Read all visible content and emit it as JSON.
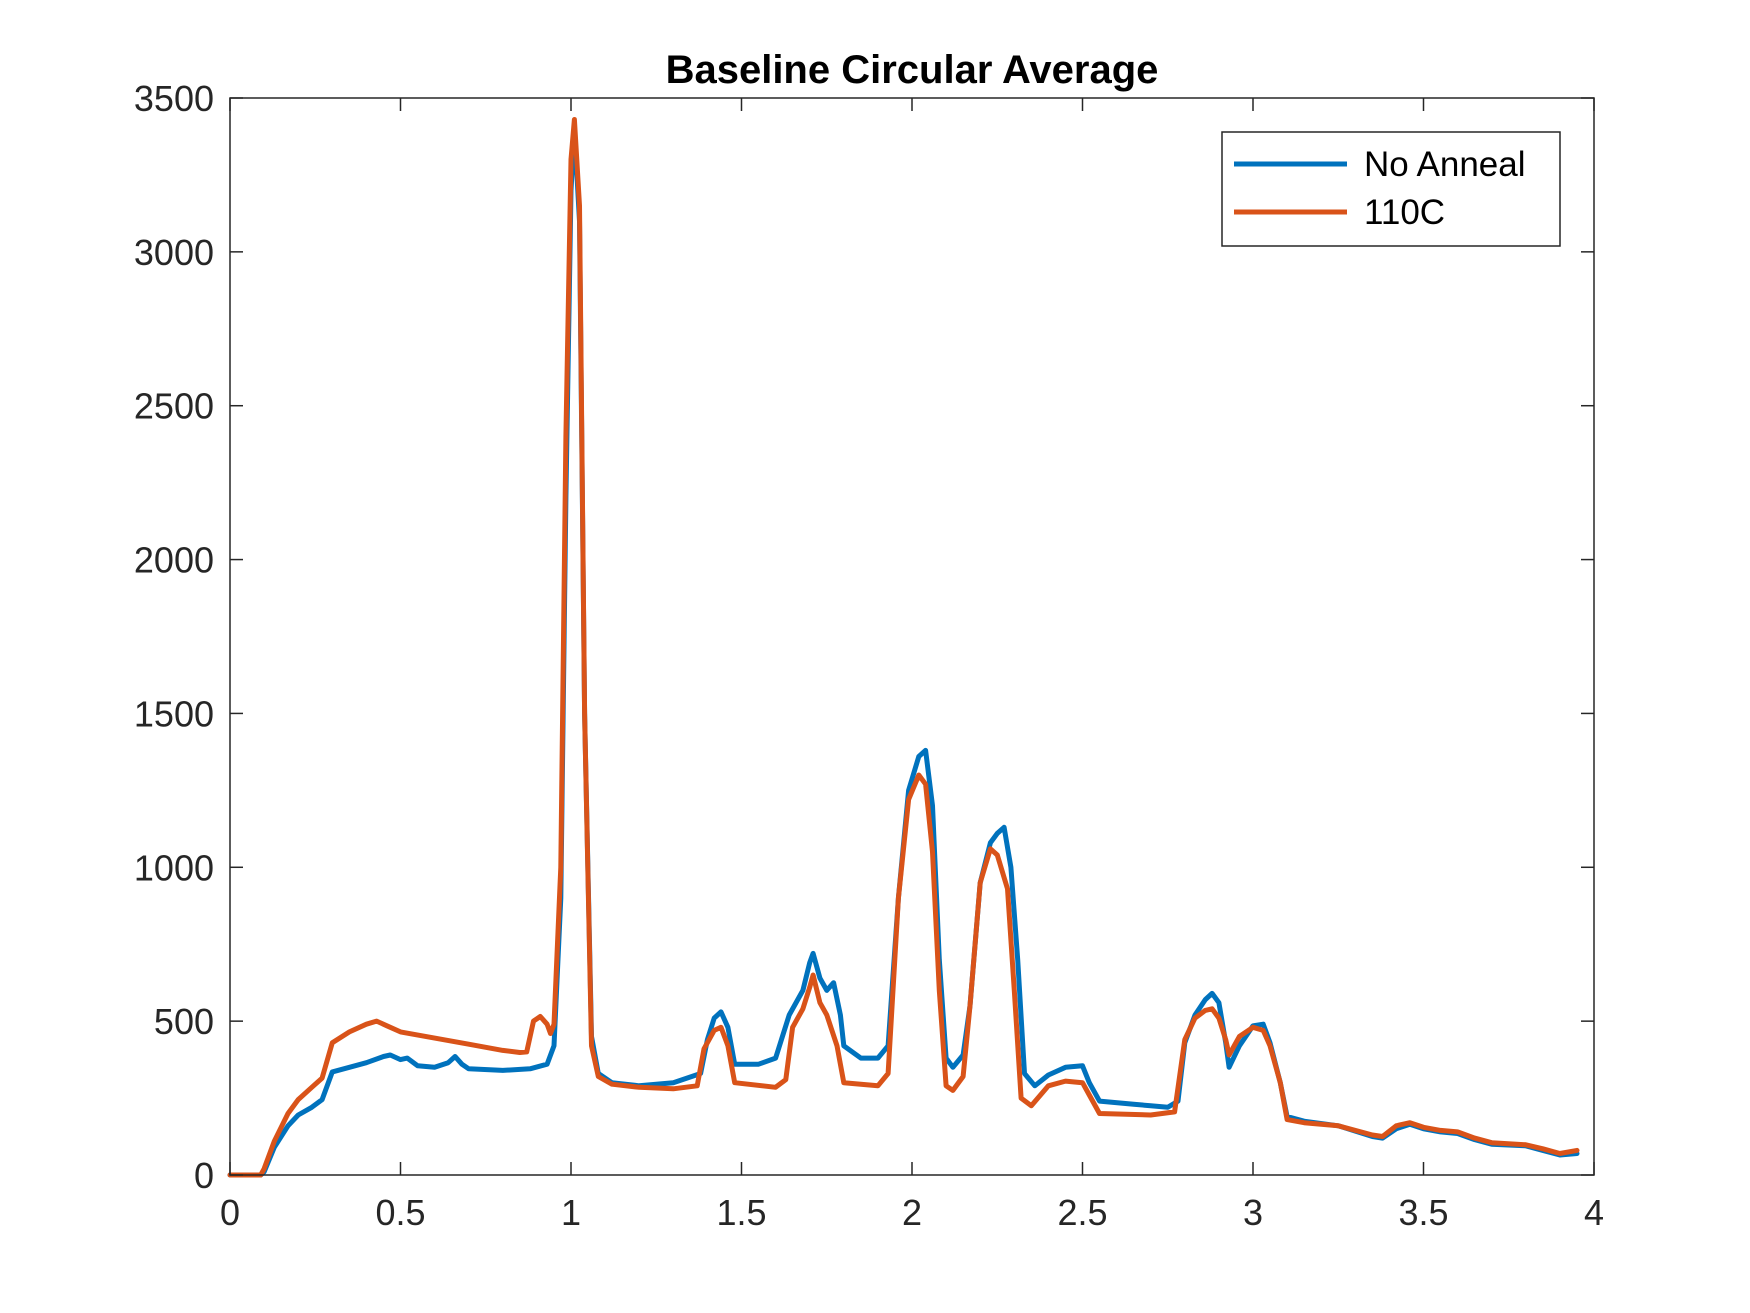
{
  "chart_data": {
    "type": "line",
    "title": "Baseline Circular Average",
    "xlabel": "",
    "ylabel": "",
    "xlim": [
      0,
      4
    ],
    "ylim": [
      0,
      3500
    ],
    "xticks": [
      0,
      0.5,
      1,
      1.5,
      2,
      2.5,
      3,
      3.5,
      4
    ],
    "xtick_labels": [
      "0",
      "0.5",
      "1",
      "1.5",
      "2",
      "2.5",
      "3",
      "3.5",
      "4"
    ],
    "yticks": [
      0,
      500,
      1000,
      1500,
      2000,
      2500,
      3000,
      3500
    ],
    "ytick_labels": [
      "0",
      "500",
      "1000",
      "1500",
      "2000",
      "2500",
      "3000",
      "3500"
    ],
    "grid": false,
    "box": true,
    "legend_position": "top-right",
    "series": [
      {
        "name": "No Anneal",
        "color": "#0072BD",
        "points": [
          [
            0,
            0
          ],
          [
            0.09,
            0
          ],
          [
            0.1,
            10
          ],
          [
            0.13,
            90
          ],
          [
            0.17,
            160
          ],
          [
            0.2,
            195
          ],
          [
            0.24,
            220
          ],
          [
            0.27,
            245
          ],
          [
            0.3,
            335
          ],
          [
            0.35,
            350
          ],
          [
            0.4,
            365
          ],
          [
            0.45,
            385
          ],
          [
            0.47,
            390
          ],
          [
            0.5,
            375
          ],
          [
            0.52,
            380
          ],
          [
            0.55,
            355
          ],
          [
            0.6,
            350
          ],
          [
            0.64,
            365
          ],
          [
            0.66,
            385
          ],
          [
            0.68,
            360
          ],
          [
            0.7,
            345
          ],
          [
            0.8,
            340
          ],
          [
            0.88,
            345
          ],
          [
            0.93,
            360
          ],
          [
            0.95,
            420
          ],
          [
            0.97,
            900
          ],
          [
            0.985,
            2200
          ],
          [
            1.0,
            3200
          ],
          [
            1.01,
            3400
          ],
          [
            1.025,
            3100
          ],
          [
            1.04,
            1500
          ],
          [
            1.06,
            450
          ],
          [
            1.08,
            330
          ],
          [
            1.12,
            300
          ],
          [
            1.2,
            290
          ],
          [
            1.3,
            300
          ],
          [
            1.38,
            330
          ],
          [
            1.4,
            440
          ],
          [
            1.42,
            510
          ],
          [
            1.44,
            530
          ],
          [
            1.46,
            480
          ],
          [
            1.48,
            360
          ],
          [
            1.55,
            360
          ],
          [
            1.6,
            380
          ],
          [
            1.64,
            520
          ],
          [
            1.68,
            600
          ],
          [
            1.7,
            690
          ],
          [
            1.71,
            720
          ],
          [
            1.73,
            640
          ],
          [
            1.75,
            600
          ],
          [
            1.77,
            625
          ],
          [
            1.79,
            520
          ],
          [
            1.8,
            420
          ],
          [
            1.85,
            380
          ],
          [
            1.9,
            380
          ],
          [
            1.93,
            420
          ],
          [
            1.96,
            900
          ],
          [
            1.99,
            1250
          ],
          [
            2.02,
            1360
          ],
          [
            2.04,
            1380
          ],
          [
            2.06,
            1200
          ],
          [
            2.08,
            700
          ],
          [
            2.1,
            380
          ],
          [
            2.12,
            350
          ],
          [
            2.15,
            390
          ],
          [
            2.17,
            550
          ],
          [
            2.2,
            950
          ],
          [
            2.23,
            1080
          ],
          [
            2.25,
            1110
          ],
          [
            2.27,
            1130
          ],
          [
            2.29,
            1000
          ],
          [
            2.31,
            700
          ],
          [
            2.33,
            330
          ],
          [
            2.36,
            290
          ],
          [
            2.4,
            325
          ],
          [
            2.45,
            350
          ],
          [
            2.5,
            355
          ],
          [
            2.52,
            300
          ],
          [
            2.55,
            240
          ],
          [
            2.65,
            230
          ],
          [
            2.7,
            225
          ],
          [
            2.75,
            220
          ],
          [
            2.78,
            240
          ],
          [
            2.8,
            430
          ],
          [
            2.83,
            520
          ],
          [
            2.86,
            570
          ],
          [
            2.88,
            590
          ],
          [
            2.9,
            560
          ],
          [
            2.92,
            430
          ],
          [
            2.93,
            350
          ],
          [
            2.96,
            420
          ],
          [
            3.0,
            485
          ],
          [
            3.03,
            490
          ],
          [
            3.05,
            430
          ],
          [
            3.08,
            300
          ],
          [
            3.1,
            190
          ],
          [
            3.15,
            175
          ],
          [
            3.25,
            160
          ],
          [
            3.35,
            125
          ],
          [
            3.38,
            120
          ],
          [
            3.42,
            150
          ],
          [
            3.46,
            165
          ],
          [
            3.5,
            150
          ],
          [
            3.55,
            140
          ],
          [
            3.6,
            135
          ],
          [
            3.65,
            115
          ],
          [
            3.7,
            100
          ],
          [
            3.8,
            95
          ],
          [
            3.85,
            80
          ],
          [
            3.9,
            65
          ],
          [
            3.95,
            70
          ]
        ]
      },
      {
        "name": "110C",
        "color": "#D95319",
        "points": [
          [
            0,
            0
          ],
          [
            0.09,
            0
          ],
          [
            0.1,
            20
          ],
          [
            0.13,
            110
          ],
          [
            0.17,
            200
          ],
          [
            0.2,
            245
          ],
          [
            0.24,
            285
          ],
          [
            0.27,
            315
          ],
          [
            0.3,
            430
          ],
          [
            0.35,
            465
          ],
          [
            0.4,
            490
          ],
          [
            0.43,
            500
          ],
          [
            0.46,
            485
          ],
          [
            0.5,
            465
          ],
          [
            0.6,
            445
          ],
          [
            0.7,
            425
          ],
          [
            0.8,
            405
          ],
          [
            0.85,
            398
          ],
          [
            0.87,
            400
          ],
          [
            0.89,
            500
          ],
          [
            0.91,
            515
          ],
          [
            0.93,
            490
          ],
          [
            0.94,
            460
          ],
          [
            0.95,
            490
          ],
          [
            0.97,
            1000
          ],
          [
            0.985,
            2400
          ],
          [
            1.0,
            3300
          ],
          [
            1.01,
            3430
          ],
          [
            1.025,
            3150
          ],
          [
            1.04,
            1500
          ],
          [
            1.06,
            420
          ],
          [
            1.08,
            320
          ],
          [
            1.12,
            295
          ],
          [
            1.2,
            285
          ],
          [
            1.3,
            280
          ],
          [
            1.37,
            290
          ],
          [
            1.39,
            410
          ],
          [
            1.42,
            470
          ],
          [
            1.44,
            480
          ],
          [
            1.46,
            420
          ],
          [
            1.48,
            300
          ],
          [
            1.6,
            285
          ],
          [
            1.63,
            310
          ],
          [
            1.65,
            480
          ],
          [
            1.68,
            540
          ],
          [
            1.7,
            610
          ],
          [
            1.71,
            650
          ],
          [
            1.73,
            560
          ],
          [
            1.75,
            520
          ],
          [
            1.78,
            420
          ],
          [
            1.8,
            300
          ],
          [
            1.9,
            290
          ],
          [
            1.93,
            330
          ],
          [
            1.96,
            900
          ],
          [
            1.99,
            1220
          ],
          [
            2.02,
            1300
          ],
          [
            2.04,
            1270
          ],
          [
            2.06,
            1050
          ],
          [
            2.08,
            600
          ],
          [
            2.1,
            290
          ],
          [
            2.12,
            275
          ],
          [
            2.15,
            320
          ],
          [
            2.17,
            550
          ],
          [
            2.2,
            950
          ],
          [
            2.23,
            1060
          ],
          [
            2.25,
            1040
          ],
          [
            2.28,
            930
          ],
          [
            2.3,
            600
          ],
          [
            2.32,
            250
          ],
          [
            2.35,
            225
          ],
          [
            2.4,
            290
          ],
          [
            2.45,
            305
          ],
          [
            2.5,
            300
          ],
          [
            2.52,
            260
          ],
          [
            2.55,
            200
          ],
          [
            2.7,
            195
          ],
          [
            2.77,
            205
          ],
          [
            2.8,
            440
          ],
          [
            2.83,
            510
          ],
          [
            2.86,
            535
          ],
          [
            2.88,
            540
          ],
          [
            2.9,
            510
          ],
          [
            2.92,
            440
          ],
          [
            2.93,
            390
          ],
          [
            2.96,
            450
          ],
          [
            3.0,
            480
          ],
          [
            3.03,
            470
          ],
          [
            3.05,
            420
          ],
          [
            3.08,
            300
          ],
          [
            3.1,
            180
          ],
          [
            3.15,
            170
          ],
          [
            3.25,
            160
          ],
          [
            3.35,
            130
          ],
          [
            3.38,
            125
          ],
          [
            3.42,
            160
          ],
          [
            3.46,
            170
          ],
          [
            3.5,
            155
          ],
          [
            3.55,
            145
          ],
          [
            3.6,
            140
          ],
          [
            3.65,
            120
          ],
          [
            3.7,
            105
          ],
          [
            3.8,
            98
          ],
          [
            3.85,
            85
          ],
          [
            3.9,
            70
          ],
          [
            3.95,
            80
          ]
        ]
      }
    ]
  }
}
